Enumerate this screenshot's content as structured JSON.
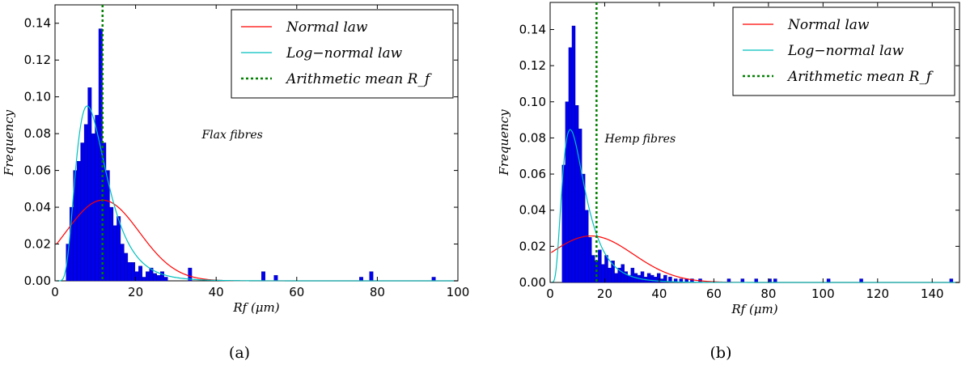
{
  "chart_data": [
    {
      "type": "bar",
      "panel_caption": "(a)",
      "annotation": "Flax fibres",
      "xlabel": "Rf (μm)",
      "ylabel": "Frequency",
      "xlim": [
        0,
        100
      ],
      "ylim": [
        0,
        0.15
      ],
      "xticks": [
        "0",
        "20",
        "40",
        "60",
        "80",
        "100"
      ],
      "yticks": [
        "0.00",
        "0.02",
        "0.04",
        "0.06",
        "0.08",
        "0.10",
        "0.12",
        "0.14"
      ],
      "legend": {
        "position": "top-right",
        "entries": [
          "Normal law",
          "Log−normal law",
          "Arithmetic mean R_f"
        ]
      },
      "colors": {
        "bars": "#0000ee",
        "normal": "#ff0000",
        "lognormal": "#00bfbf",
        "mean": "#008000"
      },
      "mean": 11.8,
      "normal": {
        "mu": 11.8,
        "sigma": 9.1
      },
      "lognormal": {
        "mu_log": 2.3,
        "sigma_log": 0.47
      },
      "bin_width": 0.9,
      "histogram": {
        "x": [
          3.2,
          4.1,
          5.0,
          5.9,
          6.8,
          7.7,
          8.6,
          9.5,
          10.4,
          11.3,
          12.2,
          13.1,
          14.0,
          14.9,
          15.8,
          16.7,
          17.6,
          18.5,
          19.4,
          20.3,
          21.2,
          22.1,
          23.0,
          23.9,
          24.8,
          25.7,
          26.6,
          27.5,
          33.5,
          51.7,
          54.8,
          76.0,
          78.5,
          94.0
        ],
        "values": [
          0.02,
          0.04,
          0.06,
          0.065,
          0.075,
          0.085,
          0.105,
          0.08,
          0.09,
          0.137,
          0.075,
          0.06,
          0.04,
          0.03,
          0.035,
          0.02,
          0.015,
          0.01,
          0.01,
          0.005,
          0.008,
          0.002,
          0.005,
          0.007,
          0.004,
          0.003,
          0.005,
          0.002,
          0.007,
          0.005,
          0.003,
          0.002,
          0.005,
          0.002
        ]
      }
    },
    {
      "type": "bar",
      "panel_caption": "(b)",
      "annotation": "Hemp fibres",
      "xlabel": "Rf (μm)",
      "ylabel": "Frequency",
      "xlim": [
        0,
        150
      ],
      "ylim": [
        0,
        0.155
      ],
      "xticks": [
        "0",
        "20",
        "40",
        "60",
        "80",
        "100",
        "120",
        "140"
      ],
      "yticks": [
        "0.00",
        "0.02",
        "0.04",
        "0.06",
        "0.08",
        "0.10",
        "0.12",
        "0.14"
      ],
      "legend": {
        "position": "top-right",
        "entries": [
          "Normal law",
          "Log−normal law",
          "Arithmetic mean R_f"
        ]
      },
      "colors": {
        "bars": "#0000ee",
        "normal": "#ff0000",
        "lognormal": "#00bfbf",
        "mean": "#008000"
      },
      "mean": 17,
      "normal": {
        "mu": 15,
        "sigma": 15.5
      },
      "lognormal": {
        "mu_log": 2.3,
        "sigma_log": 0.55
      },
      "bin_width": 1.2,
      "histogram": {
        "x": [
          5.0,
          6.2,
          7.4,
          8.6,
          9.8,
          11.0,
          12.2,
          13.4,
          14.6,
          15.8,
          17.0,
          18.2,
          19.4,
          20.6,
          21.8,
          23.0,
          24.2,
          25.4,
          26.6,
          27.8,
          29.0,
          30.2,
          31.4,
          32.6,
          33.8,
          35.0,
          36.2,
          37.4,
          38.6,
          39.8,
          41.0,
          42.2,
          44.0,
          46.0,
          48.0,
          50.0,
          52.0,
          55.0,
          65.5,
          70.5,
          75.5,
          80.5,
          82.5,
          102.0,
          114.0,
          147.0
        ],
        "values": [
          0.065,
          0.1,
          0.13,
          0.142,
          0.098,
          0.085,
          0.06,
          0.04,
          0.025,
          0.015,
          0.012,
          0.018,
          0.01,
          0.015,
          0.008,
          0.012,
          0.005,
          0.008,
          0.01,
          0.006,
          0.004,
          0.008,
          0.005,
          0.004,
          0.006,
          0.003,
          0.005,
          0.004,
          0.003,
          0.005,
          0.002,
          0.004,
          0.003,
          0.002,
          0.002,
          0.002,
          0.002,
          0.002,
          0.002,
          0.002,
          0.002,
          0.002,
          0.002,
          0.002,
          0.002,
          0.002
        ]
      }
    }
  ]
}
